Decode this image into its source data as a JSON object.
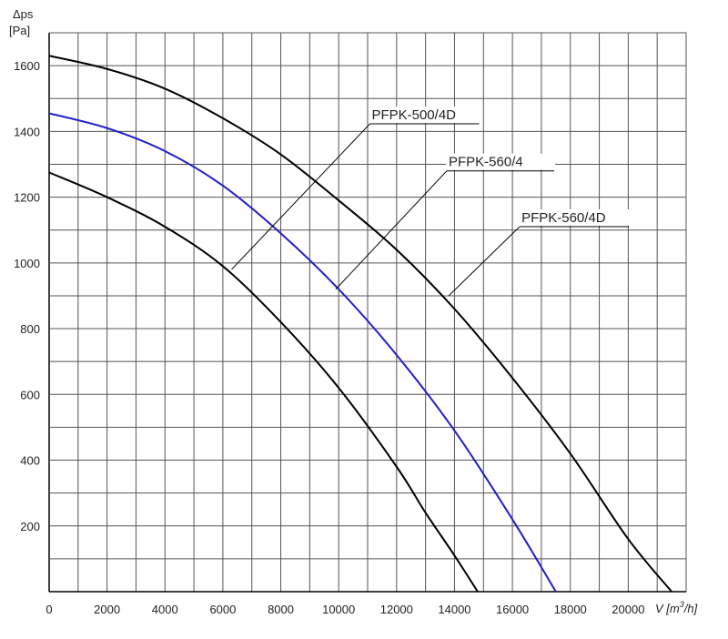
{
  "chart_data": {
    "type": "line",
    "ylabel_line1": "Δps",
    "ylabel_line2": "[Pa]",
    "xlabel_prefix": "V [m",
    "xlabel_sup": "3",
    "xlabel_suffix": "/h]",
    "xlim": [
      0,
      22000
    ],
    "ylim": [
      0,
      1700
    ],
    "x_ticks": [
      0,
      2000,
      4000,
      6000,
      8000,
      10000,
      12000,
      14000,
      16000,
      18000,
      20000
    ],
    "y_ticks": [
      200,
      400,
      600,
      800,
      1000,
      1200,
      1400,
      1600
    ],
    "grid": true,
    "series": [
      {
        "name": "PFPK-500/4D",
        "color": "#000000",
        "x": [
          0,
          2000,
          4000,
          6000,
          8000,
          10000,
          12000,
          13000,
          14000,
          14800
        ],
        "y": [
          1275,
          1200,
          1110,
          990,
          820,
          620,
          380,
          240,
          110,
          0
        ]
      },
      {
        "name": "PFPK-560/4",
        "color": "#1f1fc8",
        "x": [
          0,
          2000,
          4000,
          6000,
          8000,
          10000,
          12000,
          14000,
          16000,
          17500
        ],
        "y": [
          1455,
          1410,
          1340,
          1235,
          1090,
          920,
          720,
          490,
          220,
          0
        ]
      },
      {
        "name": "PFPK-560/4D",
        "color": "#000000",
        "x": [
          0,
          2000,
          4000,
          6000,
          8000,
          10000,
          12000,
          14000,
          16000,
          18000,
          20000,
          21500
        ],
        "y": [
          1630,
          1590,
          1530,
          1440,
          1330,
          1190,
          1040,
          860,
          650,
          420,
          160,
          0
        ]
      }
    ],
    "callouts": [
      {
        "label": "PFPK-500/4D",
        "point_x": 6300,
        "point_y": 980
      },
      {
        "label": "PFPK-560/4",
        "point_x": 9900,
        "point_y": 920
      },
      {
        "label": "PFPK-560/4D",
        "point_x": 13800,
        "point_y": 900
      }
    ]
  }
}
